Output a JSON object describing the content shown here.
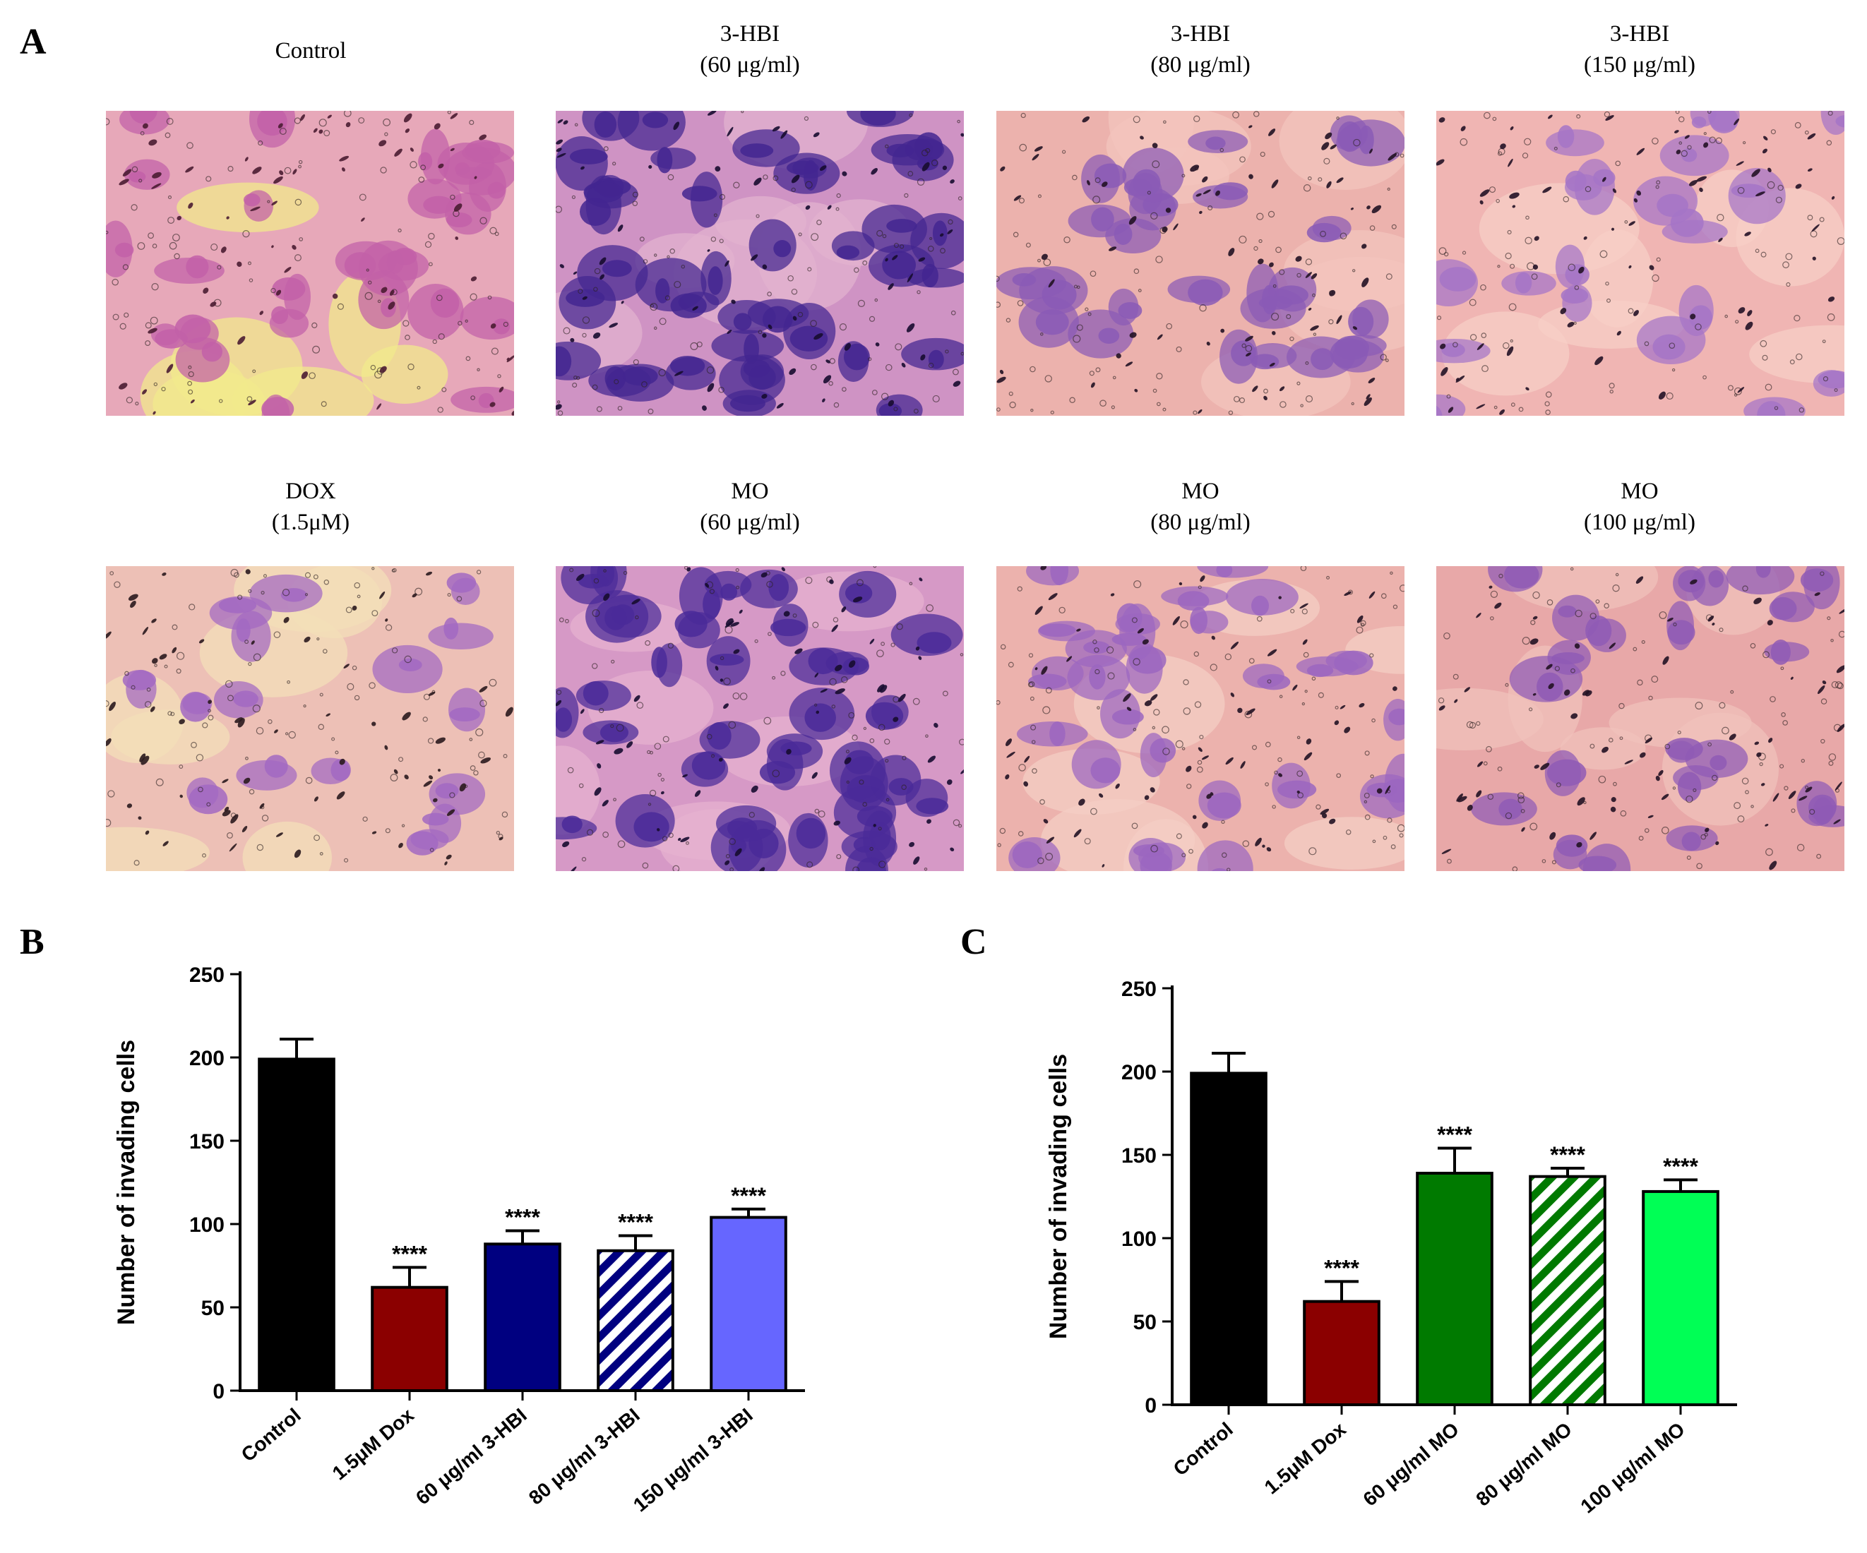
{
  "panel_labels": {
    "a": "A",
    "b": "B",
    "c": "C"
  },
  "images": [
    {
      "line1": "Control",
      "line2": "",
      "bg": "#e7a8b9",
      "glow": "#f2ea8c",
      "blob": "#c260a8",
      "dot": "#4a1c32",
      "blobs": 26
    },
    {
      "line1": "3-HBI",
      "line2": "(60 μg/ml)",
      "bg": "#cf93c4",
      "glow": "#e2b1cf",
      "blob": "#432690",
      "dot": "#170c30",
      "blobs": 40
    },
    {
      "line1": "3-HBI",
      "line2": "(80 μg/ml)",
      "bg": "#ecb2ad",
      "glow": "#f3c4bd",
      "blob": "#8a5ab6",
      "dot": "#221224",
      "blobs": 26
    },
    {
      "line1": "3-HBI",
      "line2": "(150 μg/ml)",
      "bg": "#f0b5b3",
      "glow": "#f7cfc6",
      "blob": "#a574c7",
      "dot": "#241226",
      "blobs": 20
    },
    {
      "line1": "DOX",
      "line2": "(1.5μM)",
      "bg": "#edc0b6",
      "glow": "#f3dfb8",
      "blob": "#a268c2",
      "dot": "#2a1a1e",
      "blobs": 16
    },
    {
      "line1": "MO",
      "line2": "(60 μg/ml)",
      "bg": "#d699c6",
      "glow": "#e6b2cf",
      "blob": "#4a2a99",
      "dot": "#170c30",
      "blobs": 38
    },
    {
      "line1": "MO",
      "line2": "(80 μg/ml)",
      "bg": "#ecb2ad",
      "glow": "#f4cec4",
      "blob": "#9b66c0",
      "dot": "#221224",
      "blobs": 28
    },
    {
      "line1": "MO",
      "line2": "(100 μg/ml)",
      "bg": "#e8a8a8",
      "glow": "#f0c2bb",
      "blob": "#8f5ab5",
      "dot": "#221224",
      "blobs": 22
    }
  ],
  "chart_data": [
    {
      "type": "bar",
      "panel": "B",
      "title": "",
      "xlabel": "",
      "ylabel": "Number of invading cells",
      "ylim": [
        0,
        250
      ],
      "yticks": [
        "0",
        "50",
        "100",
        "150",
        "200",
        "250"
      ],
      "categories": [
        "Control",
        "1.5μM Dox",
        "60 μg/ml 3-HBI",
        "80 μg/ml 3-HBI",
        "150 μg/ml 3-HBI"
      ],
      "values": [
        199,
        62,
        88,
        84,
        104
      ],
      "errors": [
        12,
        12,
        8,
        9,
        5
      ],
      "annotations": [
        "",
        "****",
        "****",
        "****",
        "****"
      ],
      "colors": [
        "#000000",
        "#8b0000",
        "#000080",
        "#000080",
        "#6666ff"
      ],
      "hatched": [
        false,
        false,
        false,
        true,
        false
      ]
    },
    {
      "type": "bar",
      "panel": "C",
      "title": "",
      "xlabel": "",
      "ylabel": "Number of invading cells",
      "ylim": [
        0,
        250
      ],
      "yticks": [
        "0",
        "50",
        "100",
        "150",
        "200",
        "250"
      ],
      "categories": [
        "Control",
        "1.5μM Dox",
        "60 μg/ml MO",
        "80 μg/ml  MO",
        "100 μg/ml MO"
      ],
      "values": [
        199,
        62,
        139,
        137,
        128
      ],
      "errors": [
        12,
        12,
        15,
        5,
        7
      ],
      "annotations": [
        "",
        "****",
        "****",
        "****",
        "****"
      ],
      "colors": [
        "#000000",
        "#8b0000",
        "#007a00",
        "#007a00",
        "#00ff55"
      ],
      "hatched": [
        false,
        false,
        false,
        true,
        false
      ]
    }
  ]
}
